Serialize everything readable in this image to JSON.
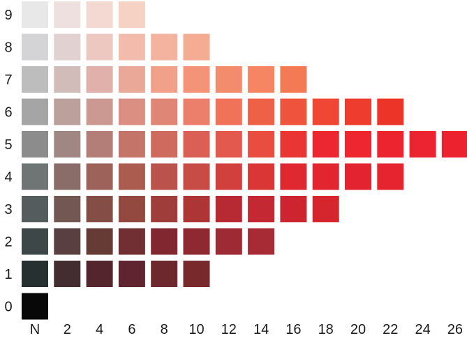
{
  "chart_data": {
    "type": "heatmap",
    "title": "",
    "xlabel": "",
    "ylabel": "",
    "x_tick_labels": [
      "N",
      "2",
      "4",
      "6",
      "8",
      "10",
      "12",
      "14",
      "16",
      "18",
      "20",
      "22",
      "24",
      "26"
    ],
    "y_tick_labels": [
      "9",
      "8",
      "7",
      "6",
      "5",
      "4",
      "3",
      "2",
      "1",
      "0"
    ],
    "cells": {
      "9": [
        "#e8e8e8",
        "#ede0de",
        "#f3d9d2",
        "#f6d2c4"
      ],
      "8": [
        "#d4d4d6",
        "#e1d1d0",
        "#ecc8c0",
        "#f2bbab",
        "#f3b39e",
        "#f4ac92"
      ],
      "7": [
        "#bdbdbd",
        "#d2bcb9",
        "#e0b0aa",
        "#eaa898",
        "#f1a08a",
        "#f39478",
        "#f38c6d",
        "#f58563",
        "#f47a55"
      ],
      "6": [
        "#a5a5a6",
        "#bba09c",
        "#cc9892",
        "#da8f82",
        "#e08676",
        "#ec7e6c",
        "#ef7259",
        "#ee6147",
        "#f0533b",
        "#ef4733",
        "#ee3d2f",
        "#ec3528"
      ],
      "5": [
        "#8c8c8c",
        "#a18784",
        "#b37d78",
        "#c47468",
        "#cf6b5e",
        "#da5f55",
        "#e3594d",
        "#e84d3f",
        "#e93634",
        "#ec2731",
        "#ed2630",
        "#ec2430",
        "#ec2431",
        "#ec222f"
      ],
      "4": [
        "#6f7474",
        "#8a6c69",
        "#9d635b",
        "#ac5b4f",
        "#b9534c",
        "#c64c45",
        "#d1403d",
        "#d93635",
        "#e02831",
        "#e2252f",
        "#e3232f",
        "#e5242f"
      ],
      "3": [
        "#545c5e",
        "#725752",
        "#844d45",
        "#934940",
        "#9f3d3b",
        "#ad3536",
        "#b82a33",
        "#c32833",
        "#cd2430",
        "#d5262e"
      ],
      "2": [
        "#3e4747",
        "#5a3f41",
        "#663a35",
        "#722f33",
        "#80272f",
        "#8e2831",
        "#9d2a34",
        "#a72b34"
      ],
      "1": [
        "#263030",
        "#432d31",
        "#55252d",
        "#5f2430",
        "#6c282c",
        "#78292b"
      ],
      "0": [
        "#080808"
      ]
    }
  }
}
